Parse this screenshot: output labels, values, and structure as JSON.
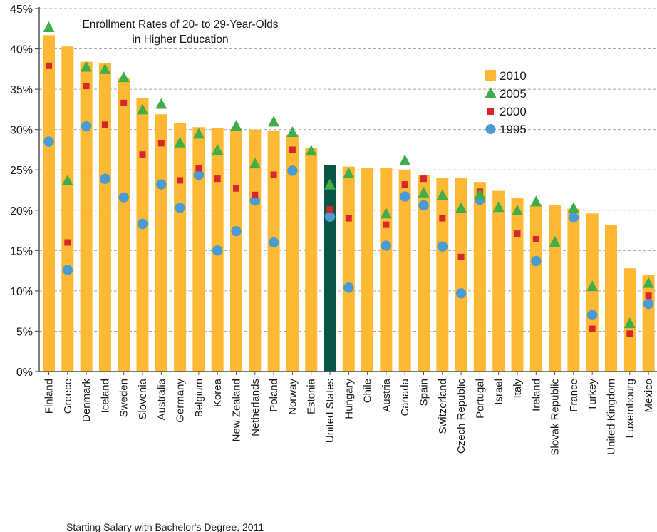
{
  "chart_data": {
    "type": "bar",
    "title_line1": "Enrollment Rates of 20- to 29-Year-Olds",
    "title_line2": "in Higher Education",
    "footer_text": "Starting Salary with Bachelor's Degree, 2011",
    "ylim": [
      0,
      45
    ],
    "yticks": [
      "0%",
      "5%",
      "10%",
      "15%",
      "20%",
      "25%",
      "30%",
      "35%",
      "40%",
      "45%"
    ],
    "grid": true,
    "legend_position": "right",
    "colors": {
      "bar": "#FDB933",
      "highlight_bar": "#0B5546",
      "triangle": "#3FAE49",
      "square": "#D7262F",
      "circle": "#4A9AD4",
      "grid": "#aaaaaa",
      "axis": "#555555"
    },
    "highlight_category": "United States",
    "categories": [
      "Finland",
      "Greece",
      "Denmark",
      "Iceland",
      "Sweden",
      "Slovenia",
      "Australia",
      "Germany",
      "Belgium",
      "Korea",
      "New Zealand",
      "Netherlands",
      "Poland",
      "Norway",
      "Estonia",
      "United States",
      "Hungary",
      "Chile",
      "Austria",
      "Canada",
      "Spain",
      "Switzerland",
      "Czech Republic",
      "Portugal",
      "Israel",
      "Italy",
      "Ireland",
      "Slovak Republic",
      "France",
      "Turkey",
      "United Kingdom",
      "Luxembourg",
      "Mexico"
    ],
    "legend": [
      {
        "label": "2010",
        "marker": "square-bar"
      },
      {
        "label": "2005",
        "marker": "triangle"
      },
      {
        "label": "2000",
        "marker": "square"
      },
      {
        "label": "1995",
        "marker": "circle"
      }
    ],
    "series": [
      {
        "name": "2010",
        "values": [
          41.7,
          40.3,
          38.4,
          38.2,
          36.4,
          33.9,
          31.9,
          30.8,
          30.3,
          30.2,
          30.0,
          30.0,
          29.9,
          29.4,
          27.7,
          25.6,
          25.4,
          25.2,
          25.2,
          25.0,
          24.4,
          24.0,
          24.0,
          23.5,
          22.4,
          21.5,
          20.7,
          20.6,
          20.2,
          19.6,
          18.2,
          12.8,
          12.0
        ]
      },
      {
        "name": "2005",
        "values": [
          42.7,
          23.7,
          37.8,
          37.5,
          36.5,
          32.5,
          33.2,
          28.4,
          29.5,
          27.5,
          30.5,
          25.8,
          31.0,
          29.7,
          27.4,
          23.2,
          24.6,
          null,
          19.6,
          26.2,
          22.2,
          21.9,
          20.3,
          22.0,
          20.4,
          20.0,
          21.1,
          16.1,
          20.3,
          10.6,
          null,
          6.0,
          11.0
        ]
      },
      {
        "name": "2000",
        "values": [
          37.9,
          16.0,
          35.4,
          30.6,
          33.3,
          26.9,
          28.3,
          23.7,
          25.2,
          23.9,
          22.7,
          21.9,
          24.4,
          27.5,
          null,
          20.1,
          19.0,
          null,
          18.2,
          23.2,
          23.9,
          19.0,
          14.2,
          22.3,
          null,
          17.1,
          16.4,
          null,
          null,
          5.3,
          null,
          4.7,
          9.4
        ]
      },
      {
        "name": "1995",
        "values": [
          28.5,
          12.6,
          30.4,
          23.9,
          21.6,
          18.3,
          23.2,
          20.3,
          24.4,
          15.0,
          17.4,
          21.2,
          16.0,
          24.9,
          null,
          19.2,
          10.4,
          null,
          15.6,
          21.7,
          20.6,
          15.5,
          9.7,
          21.3,
          null,
          null,
          13.7,
          null,
          19.1,
          7.0,
          null,
          null,
          8.4
        ]
      }
    ]
  }
}
